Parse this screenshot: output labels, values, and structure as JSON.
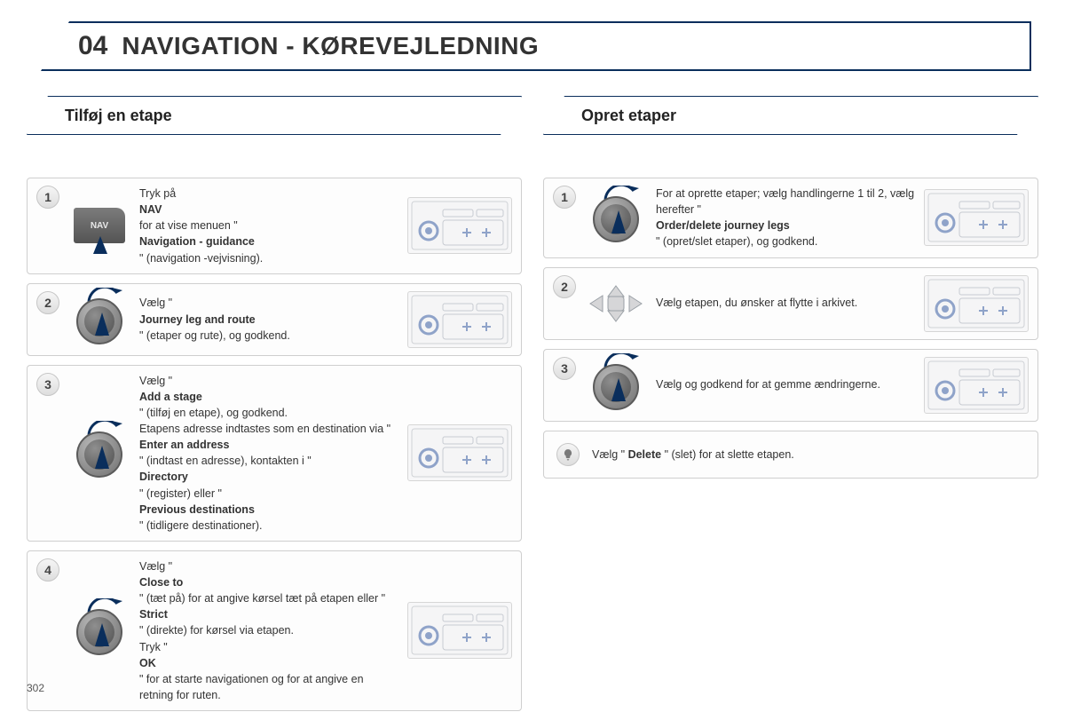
{
  "header": {
    "number": "04",
    "title": "NAVIGATION - KØREVEJLEDNING"
  },
  "page_number": "302",
  "colors": {
    "accent": "#0a2e5c",
    "step_border": "#cfcfcf",
    "badge_bg_top": "#f6f6f6",
    "badge_bg_bottom": "#dedede",
    "console_bg": "#f7f7f8"
  },
  "left": {
    "section_title": "Tilføj en etape",
    "steps": [
      {
        "num": "1",
        "icon": "nav-button",
        "text": "Tryk på <b>NAV</b> for at vise menuen \" <b>Navigation - guidance</b> \" (navigation -vejvisning).",
        "console": true
      },
      {
        "num": "2",
        "icon": "dial",
        "text": "Vælg \" <b>Journey leg and route</b> \" (etaper og rute), og godkend.",
        "console": true
      },
      {
        "num": "3",
        "icon": "dial",
        "text": "Vælg \" <b>Add a stage</b> \" (tilføj en etape), og godkend.<br>Etapens adresse indtastes som en destination via \" <b>Enter an address</b> \" (indtast en adresse), kontakten i \" <b>Directory</b> \" (register) eller \" <b>Previous destinations</b> \" (tidligere destinationer).",
        "console": true
      },
      {
        "num": "4",
        "icon": "dial",
        "text": "Vælg \" <b>Close to</b> \" (tæt på) for at angive kørsel tæt på etapen eller \" <b>Strict</b> \" (direkte) for kørsel via etapen.<br>Tryk \"<b>OK</b>\" for at starte navigationen og for at angive en retning for ruten.",
        "console": true
      }
    ]
  },
  "right": {
    "section_title": "Opret etaper",
    "steps": [
      {
        "num": "1",
        "icon": "dial",
        "text": "For at oprette etaper; vælg handlingerne 1 til 2, vælg herefter \" <b>Order/delete journey legs</b> \" (opret/slet etaper), og godkend.",
        "console": true
      },
      {
        "num": "2",
        "icon": "dpad",
        "text": "Vælg etapen, du ønsker at flytte i arkivet.",
        "console": true
      },
      {
        "num": "3",
        "icon": "dial",
        "text": "Vælg og godkend for at gemme ændringerne.",
        "console": true
      }
    ],
    "note": "Vælg \" <b>Delete</b> \" (slet) for at slette etapen."
  }
}
